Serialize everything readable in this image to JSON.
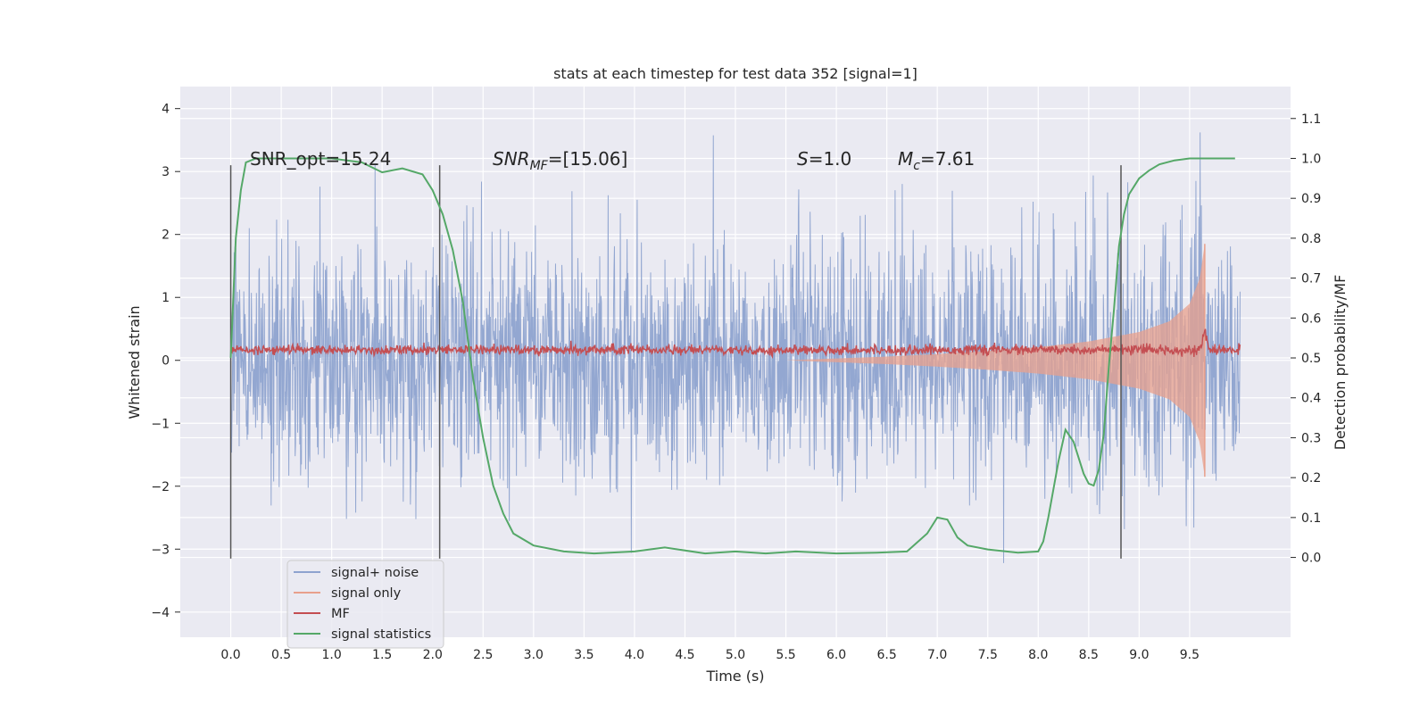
{
  "chart_data": {
    "type": "line",
    "title": "stats at each timestep for test data 352 [signal=1]",
    "xlabel": "Time (s)",
    "ylabel": "Whitened strain",
    "ylabel_right": "Detection probability/MF",
    "xlim": [
      -0.5,
      10.5
    ],
    "ylim": [
      -4.4,
      4.35
    ],
    "ylim_right": [
      -0.2,
      1.18
    ],
    "x_ticks": [
      "0.0",
      "0.5",
      "1.0",
      "1.5",
      "2.0",
      "2.5",
      "3.0",
      "3.5",
      "4.0",
      "4.5",
      "5.0",
      "5.5",
      "6.0",
      "6.5",
      "7.0",
      "7.5",
      "8.0",
      "8.5",
      "9.0",
      "9.5"
    ],
    "y_ticks": [
      "4",
      "3",
      "2",
      "1",
      "0",
      "−1",
      "−2",
      "−3",
      "−4"
    ],
    "y_ticks_right": [
      "1.1",
      "1.0",
      "0.9",
      "0.8",
      "0.7",
      "0.6",
      "0.5",
      "0.4",
      "0.3",
      "0.2",
      "0.1",
      "0.0"
    ],
    "annotations": {
      "snr_opt": "SNR_opt=15.24",
      "snr_mf_main": "SNR",
      "snr_mf_sub": "MF",
      "snr_mf_rest": "=[15.06]",
      "s_main": "S",
      "s_rest": "=1.0",
      "mc_main": "M",
      "mc_sub": "c",
      "mc_rest": "=7.61"
    },
    "vertical_markers_s": [
      0.0,
      2.07,
      8.82
    ],
    "legend": {
      "position": "lower left",
      "entries": [
        "signal+ noise",
        "signal only",
        "MF",
        "signal statistics"
      ]
    },
    "series": [
      {
        "name": "signal+ noise",
        "axis": "left",
        "style": "dense noise, sigma ~0.9, range approx -4.0 to 4.0",
        "x_range": [
          0.0,
          10.0
        ]
      },
      {
        "name": "signal only",
        "axis": "left",
        "style": "chirp, envelope rising from ~0 at 5.5 s to ~1.85 at 9.65 s",
        "env_x": [
          5.5,
          6.5,
          7.0,
          7.5,
          8.0,
          8.5,
          9.0,
          9.3,
          9.5,
          9.6,
          9.65
        ],
        "env_y": [
          0.0,
          0.06,
          0.1,
          0.15,
          0.21,
          0.3,
          0.45,
          0.62,
          0.9,
          1.3,
          1.85
        ]
      },
      {
        "name": "MF",
        "axis": "right",
        "style": "noisy around 0.52, peak 0.57 at 9.65 s",
        "baseline": 0.52,
        "peak": 0.57
      },
      {
        "name": "signal statistics",
        "axis": "right",
        "x": [
          0.0,
          0.05,
          0.1,
          0.15,
          0.25,
          0.5,
          1.0,
          1.3,
          1.5,
          1.7,
          1.9,
          2.0,
          2.1,
          2.2,
          2.3,
          2.4,
          2.5,
          2.6,
          2.7,
          2.8,
          3.0,
          3.3,
          3.6,
          4.0,
          4.3,
          4.7,
          5.0,
          5.3,
          5.6,
          6.0,
          6.4,
          6.7,
          6.9,
          7.0,
          7.1,
          7.2,
          7.3,
          7.5,
          7.8,
          8.0,
          8.05,
          8.1,
          8.2,
          8.27,
          8.35,
          8.45,
          8.5,
          8.55,
          8.6,
          8.65,
          8.7,
          8.75,
          8.8,
          8.85,
          8.9,
          9.0,
          9.1,
          9.2,
          9.35,
          9.5,
          9.7,
          9.95
        ],
        "y": [
          0.5,
          0.8,
          0.92,
          0.99,
          1.0,
          1.0,
          1.0,
          0.99,
          0.965,
          0.975,
          0.96,
          0.92,
          0.86,
          0.77,
          0.64,
          0.45,
          0.3,
          0.18,
          0.11,
          0.06,
          0.03,
          0.015,
          0.01,
          0.015,
          0.025,
          0.01,
          0.015,
          0.01,
          0.015,
          0.01,
          0.012,
          0.015,
          0.06,
          0.1,
          0.095,
          0.05,
          0.03,
          0.02,
          0.012,
          0.015,
          0.04,
          0.1,
          0.24,
          0.32,
          0.29,
          0.21,
          0.185,
          0.18,
          0.22,
          0.31,
          0.48,
          0.62,
          0.78,
          0.86,
          0.91,
          0.95,
          0.97,
          0.985,
          0.995,
          1.0,
          1.0,
          1.0
        ]
      }
    ]
  },
  "colors": {
    "background": "#eaeaf2",
    "grid": "#ffffff",
    "noise": "#8ea3cf",
    "signal_only": "#e8a08c",
    "mf": "#c44e52",
    "statistics": "#55a868",
    "markers": "#555555",
    "text": "#262626"
  }
}
